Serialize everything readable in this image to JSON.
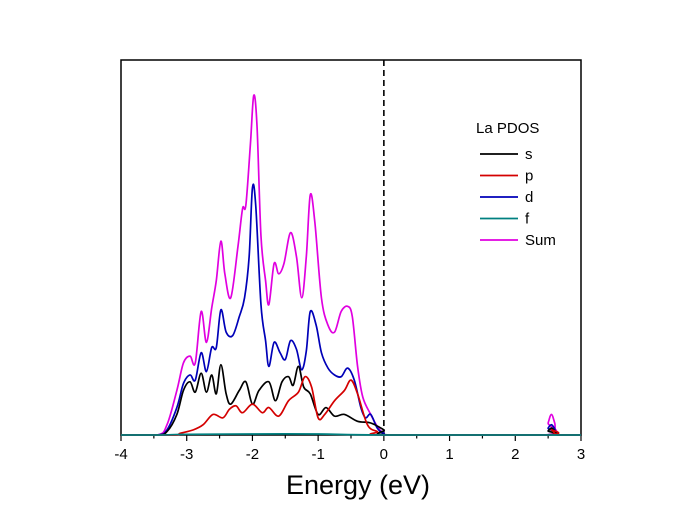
{
  "chart_data": {
    "type": "line",
    "xlabel": "Energy (eV)",
    "ylabel": "",
    "xlim": [
      -4,
      3
    ],
    "ylim": [
      0,
      1.0
    ],
    "x_ticks": [
      "-4",
      "-3",
      "-2",
      "-1",
      "0",
      "1",
      "2",
      "3"
    ],
    "fermi_level_x": 0,
    "legend_title": "La PDOS",
    "legend_position": "top-right",
    "grid": false,
    "series": [
      {
        "name": "s",
        "color": "#000000",
        "points": [
          [
            -4,
            0
          ],
          [
            -3.45,
            0
          ],
          [
            -3.3,
            0.01
          ],
          [
            -3.15,
            0.06
          ],
          [
            -3.05,
            0.13
          ],
          [
            -2.95,
            0.155
          ],
          [
            -2.87,
            0.125
          ],
          [
            -2.78,
            0.18
          ],
          [
            -2.7,
            0.125
          ],
          [
            -2.62,
            0.175
          ],
          [
            -2.55,
            0.12
          ],
          [
            -2.48,
            0.205
          ],
          [
            -2.4,
            0.12
          ],
          [
            -2.33,
            0.09
          ],
          [
            -2.2,
            0.13
          ],
          [
            -2.1,
            0.155
          ],
          [
            -2.0,
            0.09
          ],
          [
            -1.9,
            0.13
          ],
          [
            -1.75,
            0.155
          ],
          [
            -1.65,
            0.1
          ],
          [
            -1.55,
            0.155
          ],
          [
            -1.45,
            0.17
          ],
          [
            -1.38,
            0.145
          ],
          [
            -1.3,
            0.2
          ],
          [
            -1.22,
            0.14
          ],
          [
            -1.12,
            0.12
          ],
          [
            -1.0,
            0.06
          ],
          [
            -0.88,
            0.08
          ],
          [
            -0.75,
            0.055
          ],
          [
            -0.6,
            0.06
          ],
          [
            -0.4,
            0.04
          ],
          [
            -0.2,
            0.035
          ],
          [
            0,
            0.015
          ],
          [
            0.1,
            0
          ],
          [
            2.45,
            0
          ],
          [
            2.5,
            0.012
          ],
          [
            2.55,
            0.02
          ],
          [
            2.6,
            0.012
          ],
          [
            2.65,
            0
          ],
          [
            3,
            0
          ]
        ]
      },
      {
        "name": "p",
        "color": "#d40000",
        "points": [
          [
            -4,
            0
          ],
          [
            -3.2,
            0
          ],
          [
            -3.1,
            0.005
          ],
          [
            -2.9,
            0.015
          ],
          [
            -2.75,
            0.03
          ],
          [
            -2.6,
            0.06
          ],
          [
            -2.45,
            0.05
          ],
          [
            -2.35,
            0.075
          ],
          [
            -2.25,
            0.085
          ],
          [
            -2.15,
            0.065
          ],
          [
            -2.0,
            0.09
          ],
          [
            -1.85,
            0.065
          ],
          [
            -1.75,
            0.08
          ],
          [
            -1.6,
            0.055
          ],
          [
            -1.45,
            0.1
          ],
          [
            -1.3,
            0.125
          ],
          [
            -1.2,
            0.17
          ],
          [
            -1.1,
            0.14
          ],
          [
            -1.0,
            0.05
          ],
          [
            -0.9,
            0.06
          ],
          [
            -0.75,
            0.1
          ],
          [
            -0.6,
            0.13
          ],
          [
            -0.5,
            0.16
          ],
          [
            -0.4,
            0.12
          ],
          [
            -0.25,
            0.03
          ],
          [
            -0.1,
            0.01
          ],
          [
            0,
            0
          ],
          [
            2.45,
            0
          ],
          [
            2.55,
            0.015
          ],
          [
            2.65,
            0
          ],
          [
            3,
            0
          ]
        ]
      },
      {
        "name": "d",
        "color": "#0000b8",
        "points": [
          [
            -4,
            0
          ],
          [
            -3.45,
            0
          ],
          [
            -3.3,
            0.015
          ],
          [
            -3.15,
            0.08
          ],
          [
            -3.05,
            0.15
          ],
          [
            -2.95,
            0.175
          ],
          [
            -2.87,
            0.16
          ],
          [
            -2.78,
            0.24
          ],
          [
            -2.7,
            0.185
          ],
          [
            -2.62,
            0.255
          ],
          [
            -2.55,
            0.255
          ],
          [
            -2.48,
            0.365
          ],
          [
            -2.4,
            0.3
          ],
          [
            -2.3,
            0.29
          ],
          [
            -2.2,
            0.345
          ],
          [
            -2.12,
            0.4
          ],
          [
            -2.05,
            0.52
          ],
          [
            -2.0,
            0.72
          ],
          [
            -1.95,
            0.67
          ],
          [
            -1.87,
            0.38
          ],
          [
            -1.8,
            0.275
          ],
          [
            -1.75,
            0.2
          ],
          [
            -1.67,
            0.27
          ],
          [
            -1.58,
            0.24
          ],
          [
            -1.5,
            0.22
          ],
          [
            -1.42,
            0.275
          ],
          [
            -1.33,
            0.25
          ],
          [
            -1.25,
            0.19
          ],
          [
            -1.18,
            0.245
          ],
          [
            -1.12,
            0.36
          ],
          [
            -1.03,
            0.32
          ],
          [
            -0.95,
            0.24
          ],
          [
            -0.85,
            0.195
          ],
          [
            -0.75,
            0.175
          ],
          [
            -0.65,
            0.17
          ],
          [
            -0.55,
            0.195
          ],
          [
            -0.45,
            0.16
          ],
          [
            -0.35,
            0.08
          ],
          [
            -0.28,
            0.05
          ],
          [
            -0.2,
            0.06
          ],
          [
            -0.1,
            0.02
          ],
          [
            0,
            0.005
          ],
          [
            0.15,
            0
          ],
          [
            2.45,
            0
          ],
          [
            2.5,
            0.02
          ],
          [
            2.55,
            0.03
          ],
          [
            2.6,
            0.018
          ],
          [
            2.65,
            0
          ],
          [
            3,
            0
          ]
        ]
      },
      {
        "name": "f",
        "color": "#008080",
        "points": [
          [
            -4,
            0
          ],
          [
            -3.4,
            0
          ],
          [
            -3.0,
            0.002
          ],
          [
            -2.0,
            0.003
          ],
          [
            -1.0,
            0.003
          ],
          [
            0,
            0
          ],
          [
            3,
            0
          ]
        ]
      },
      {
        "name": "Sum",
        "color": "#e000e0",
        "points": [
          [
            -4,
            0
          ],
          [
            -3.45,
            0
          ],
          [
            -3.3,
            0.03
          ],
          [
            -3.15,
            0.13
          ],
          [
            -3.05,
            0.21
          ],
          [
            -2.95,
            0.23
          ],
          [
            -2.87,
            0.21
          ],
          [
            -2.78,
            0.36
          ],
          [
            -2.7,
            0.27
          ],
          [
            -2.62,
            0.37
          ],
          [
            -2.55,
            0.45
          ],
          [
            -2.48,
            0.565
          ],
          [
            -2.42,
            0.47
          ],
          [
            -2.33,
            0.4
          ],
          [
            -2.22,
            0.55
          ],
          [
            -2.15,
            0.66
          ],
          [
            -2.1,
            0.67
          ],
          [
            -2.03,
            0.85
          ],
          [
            -1.98,
            0.99
          ],
          [
            -1.93,
            0.9
          ],
          [
            -1.87,
            0.58
          ],
          [
            -1.8,
            0.45
          ],
          [
            -1.75,
            0.38
          ],
          [
            -1.67,
            0.5
          ],
          [
            -1.6,
            0.47
          ],
          [
            -1.52,
            0.5
          ],
          [
            -1.42,
            0.59
          ],
          [
            -1.33,
            0.52
          ],
          [
            -1.25,
            0.4
          ],
          [
            -1.18,
            0.52
          ],
          [
            -1.12,
            0.7
          ],
          [
            -1.05,
            0.62
          ],
          [
            -0.95,
            0.4
          ],
          [
            -0.85,
            0.32
          ],
          [
            -0.75,
            0.3
          ],
          [
            -0.65,
            0.36
          ],
          [
            -0.55,
            0.375
          ],
          [
            -0.48,
            0.345
          ],
          [
            -0.4,
            0.2
          ],
          [
            -0.32,
            0.11
          ],
          [
            -0.2,
            0.06
          ],
          [
            -0.1,
            0.025
          ],
          [
            0,
            0.005
          ],
          [
            0.2,
            0
          ],
          [
            2.45,
            0
          ],
          [
            2.5,
            0.035
          ],
          [
            2.55,
            0.06
          ],
          [
            2.6,
            0.035
          ],
          [
            2.65,
            0
          ],
          [
            3,
            0
          ]
        ]
      }
    ]
  }
}
